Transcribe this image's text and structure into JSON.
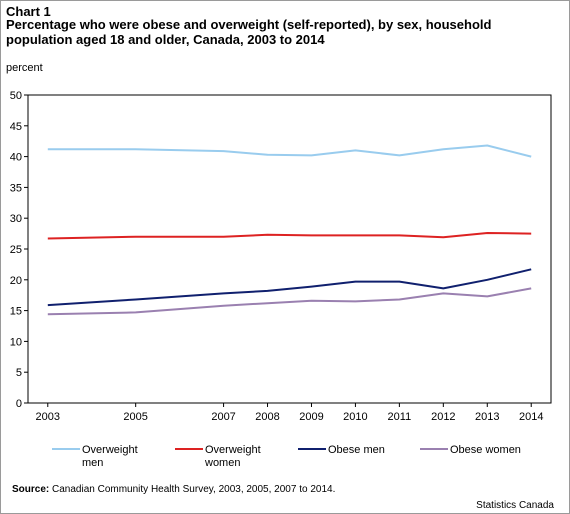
{
  "header": {
    "chart_label": "Chart 1",
    "title": "Percentage who were obese and overweight (self-reported), by sex, household population aged 18 and older, Canada, 2003 to 2014",
    "unit": "percent"
  },
  "footer": {
    "source_label": "Source:",
    "source_text": " Canadian Community Health Survey, 2003, 2005, 2007 to 2014.",
    "credit": "Statistics Canada"
  },
  "chart_data": {
    "type": "line",
    "title": "Percentage who were obese and overweight (self-reported), by sex, household population aged 18 and older, Canada, 2003 to 2014",
    "ylabel": "percent",
    "xlabel": "",
    "x": [
      2003,
      2005,
      2007,
      2008,
      2009,
      2010,
      2011,
      2012,
      2013,
      2014
    ],
    "ylim": [
      0,
      50
    ],
    "yticks": [
      0,
      5,
      10,
      15,
      20,
      25,
      30,
      35,
      40,
      45,
      50
    ],
    "grid": false,
    "legend_position": "bottom",
    "series": [
      {
        "name": "Overweight men",
        "legend_lines": [
          "Overweight",
          "men"
        ],
        "color": "#99ccee",
        "values": [
          41.2,
          41.2,
          40.9,
          40.3,
          40.2,
          41.0,
          40.2,
          41.2,
          41.8,
          40.0
        ]
      },
      {
        "name": "Overweight women",
        "legend_lines": [
          "Overweight",
          "women"
        ],
        "color": "#dd2222",
        "values": [
          26.7,
          27.0,
          27.0,
          27.3,
          27.2,
          27.2,
          27.2,
          26.9,
          27.6,
          27.5
        ]
      },
      {
        "name": "Obese men",
        "legend_lines": [
          "Obese men"
        ],
        "color": "#10206e",
        "values": [
          15.9,
          16.8,
          17.8,
          18.2,
          18.9,
          19.7,
          19.7,
          18.6,
          20.0,
          21.7
        ]
      },
      {
        "name": "Obese women",
        "legend_lines": [
          "Obese women"
        ],
        "color": "#9a80b0",
        "values": [
          14.4,
          14.7,
          15.8,
          16.2,
          16.6,
          16.5,
          16.8,
          17.8,
          17.3,
          18.6
        ]
      }
    ]
  }
}
